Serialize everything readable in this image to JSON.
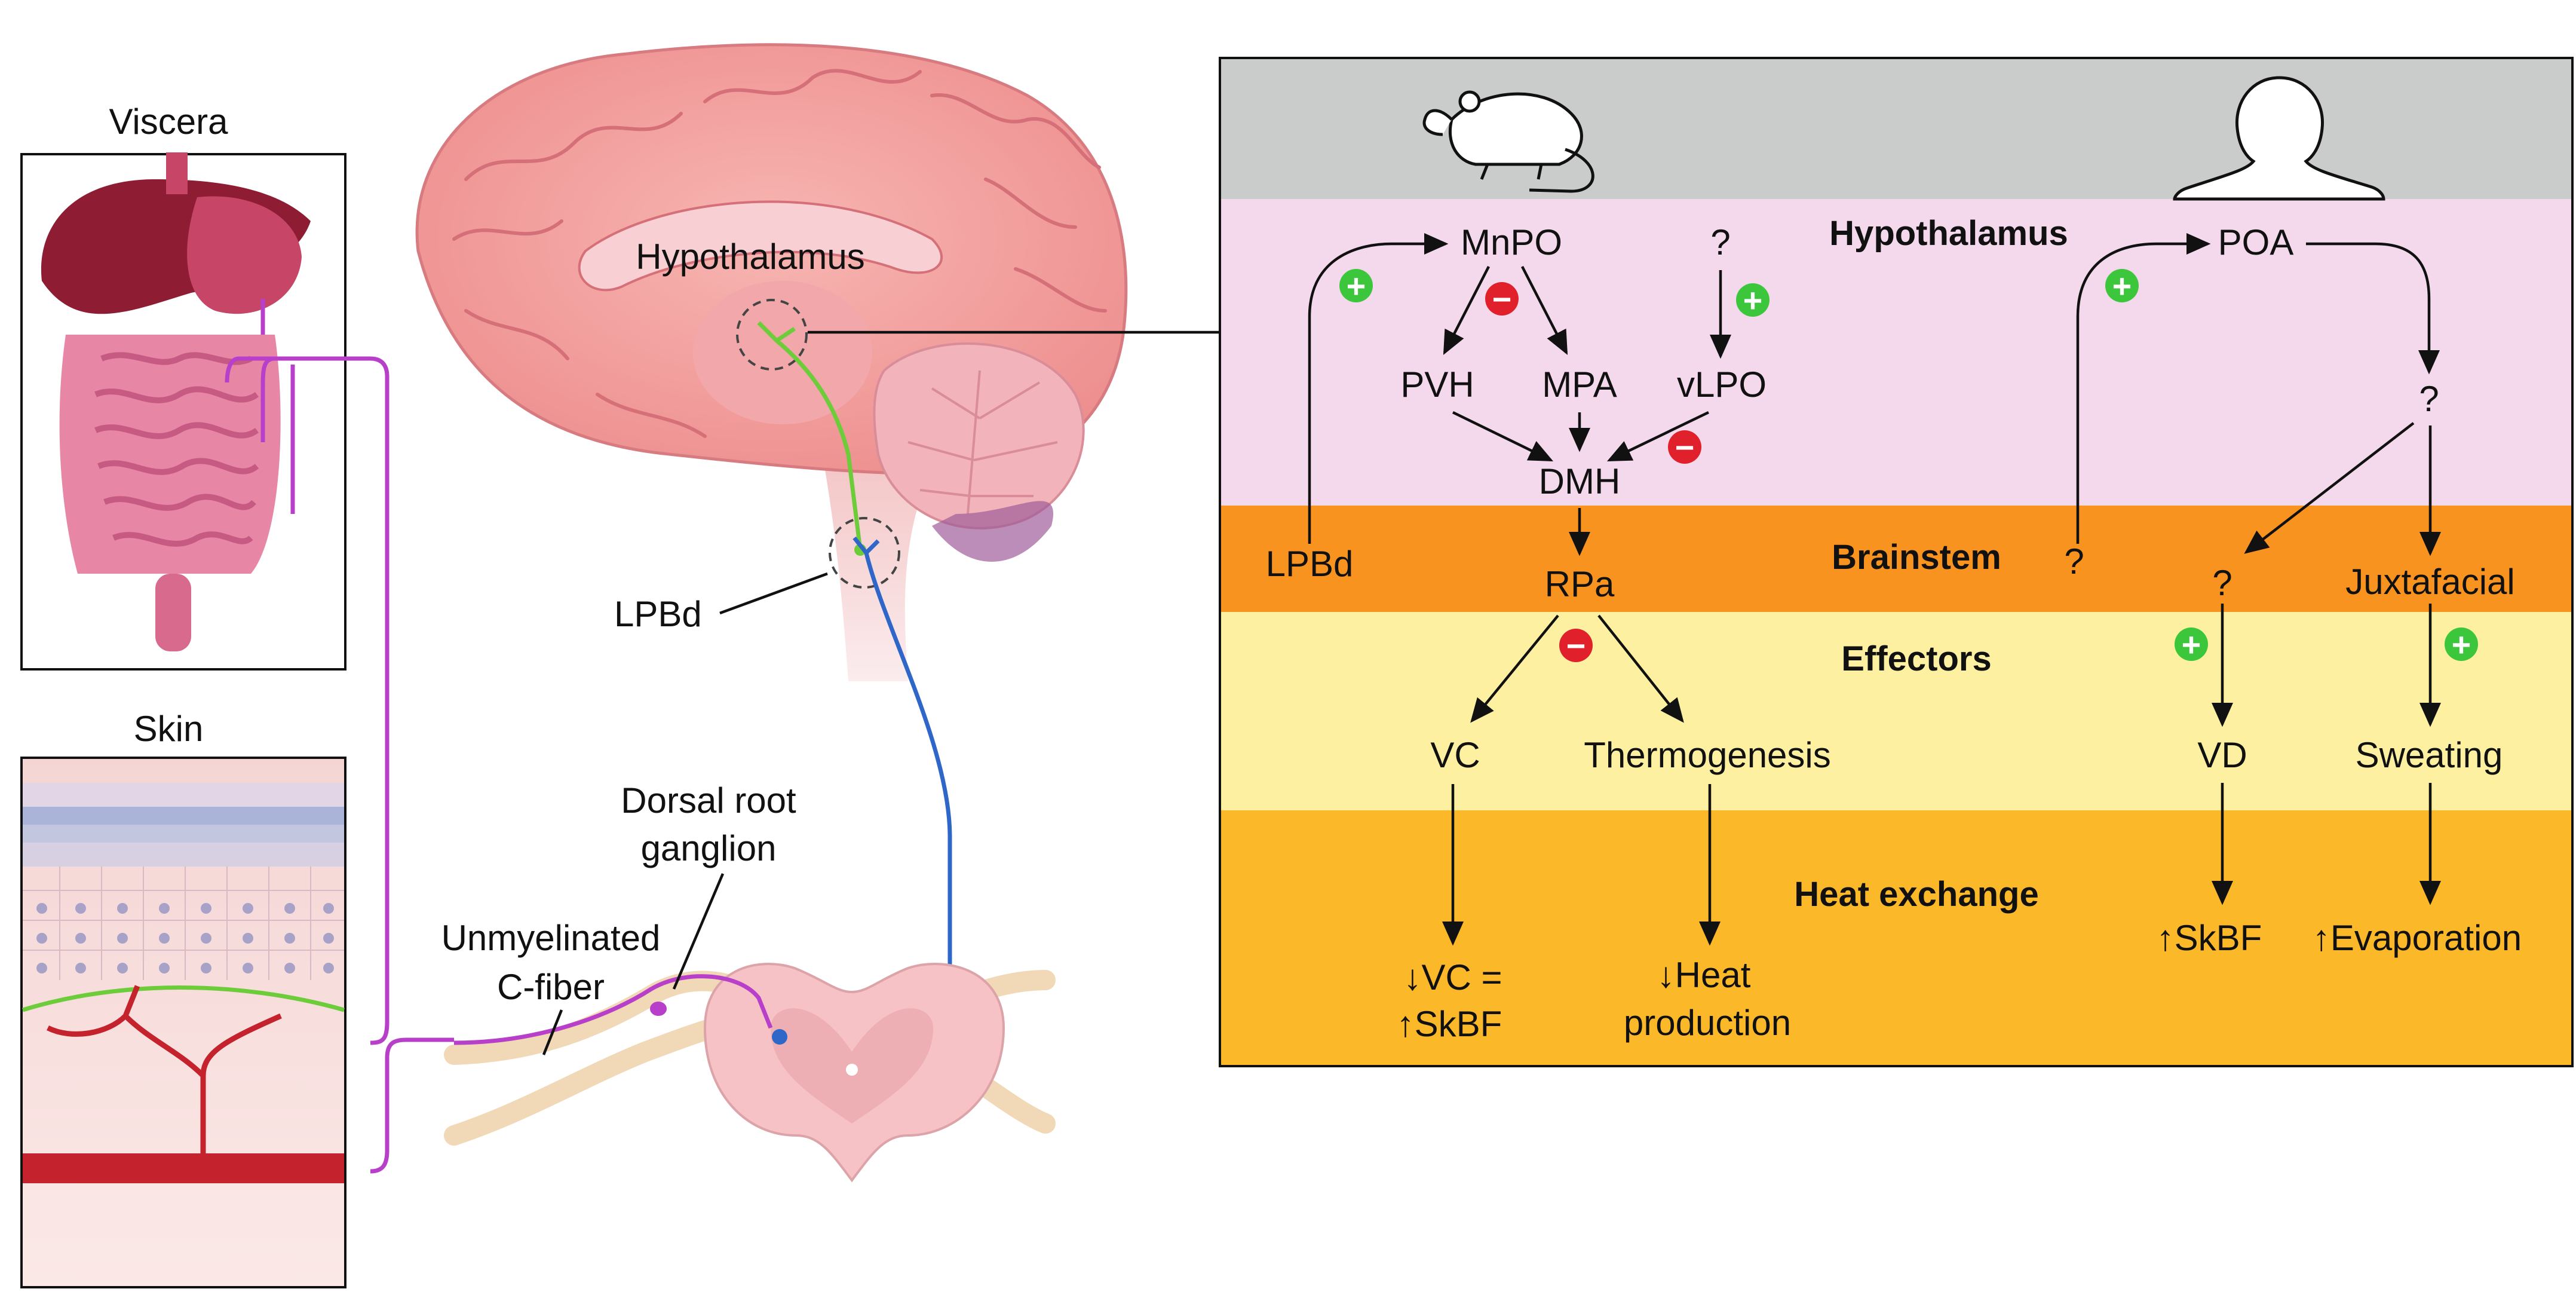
{
  "left": {
    "viscera_label": "Viscera",
    "skin_label": "Skin",
    "hypothalamus_label": "Hypothalamus",
    "lpbd_label": "LPBd",
    "drg_label_line1": "Dorsal root",
    "drg_label_line2": "ganglion",
    "cfiber_line1": "Unmyelinated",
    "cfiber_line2": "C-fiber"
  },
  "panel": {
    "sections": {
      "hypothalamus": "Hypothalamus",
      "brainstem": "Brainstem",
      "effectors": "Effectors",
      "heat_exchange": "Heat exchange"
    },
    "rodent": {
      "mnpo": "MnPO",
      "unknown_top": "?",
      "pvh": "PVH",
      "mpa": "MPA",
      "vlpo": "vLPO",
      "dmh": "DMH",
      "lpbd": "LPBd",
      "rpa": "RPa",
      "vc": "VC",
      "thermogenesis": "Thermogenesis",
      "vc_result_line1": "↓VC =",
      "vc_result_line2": "↑SkBF",
      "heat_result_line1": "↓Heat",
      "heat_result_line2": "production"
    },
    "human": {
      "poa": "POA",
      "q_hypo": "?",
      "q_brainstem_left": "?",
      "q_brainstem_mid": "?",
      "juxtafacial": "Juxtafacial",
      "vd": "VD",
      "sweating": "Sweating",
      "skbf": "↑SkBF",
      "evaporation": "↑Evaporation"
    },
    "signs": {
      "plus": "+",
      "minus": "−"
    }
  },
  "colors": {
    "header_gray": "#c9cccb",
    "hypothalamus_band": "#f3d9eb",
    "brainstem_band": "#f7931e",
    "effectors_band": "#fdf1a1",
    "heat_band": "#fbb829",
    "plus_green": "#3cc63c",
    "minus_red": "#e0202a",
    "c_fiber": "#b83fc9",
    "ascending_blue": "#2f67c9",
    "green_path": "#6dcc3a"
  }
}
